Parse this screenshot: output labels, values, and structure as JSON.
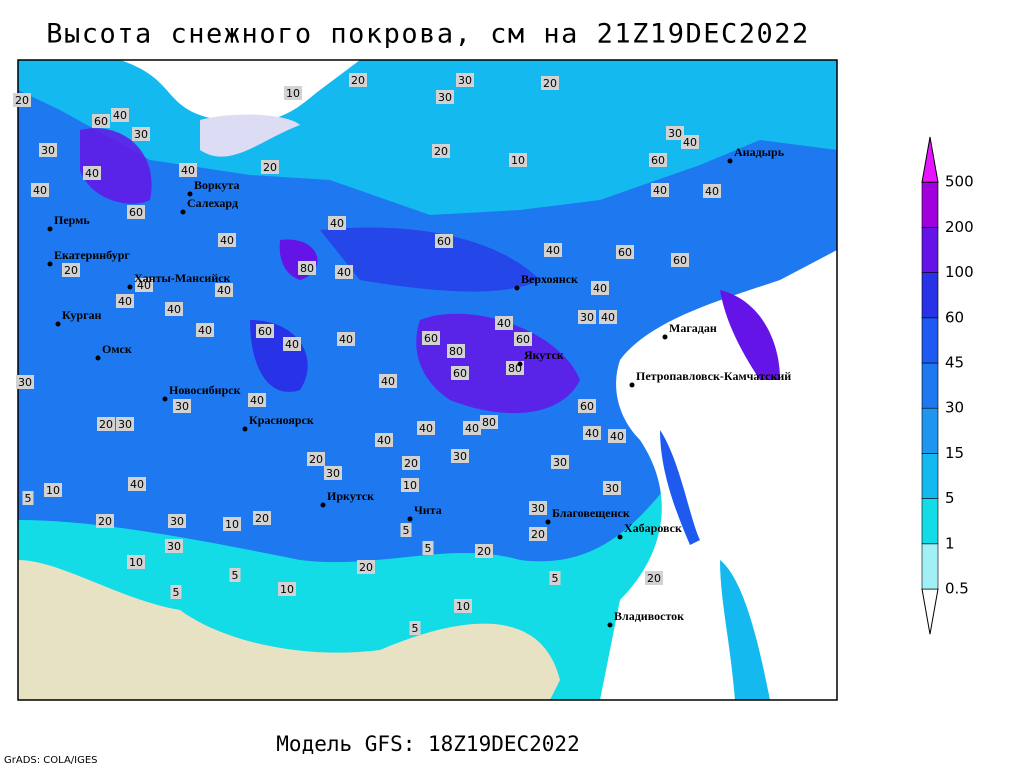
{
  "title": "Высота снежного покрова, см на 21Z19DEC2022",
  "model_label": "Модель GFS: 18Z19DEC2022",
  "credit": "GrADS: COLA/IGES",
  "cities": [
    "Анадырь",
    "Воркута",
    "Салехард",
    "Пермь",
    "Екатеринбург",
    "Ханты-Мансийск",
    "Верхоянск",
    "Курган",
    "Магадан",
    "Омск",
    "Якутск",
    "Петропавловск-Камчатский",
    "Новосибирск",
    "Красноярск",
    "Иркутск",
    "Чита",
    "Благовещенск",
    "Хабаровск",
    "Владивосток"
  ],
  "colorbar": {
    "levels": [
      0.5,
      1,
      5,
      15,
      30,
      45,
      60,
      100,
      200,
      500
    ],
    "colors": [
      "#ffffff",
      "#a0f0f5",
      "#14dce6",
      "#14b9f0",
      "#1e96f0",
      "#1e78f0",
      "#1e5af0",
      "#2832e6",
      "#6414e6",
      "#a000dc",
      "#e614ff"
    ]
  },
  "contour_labels": [
    "20",
    "30",
    "20",
    "20",
    "10",
    "30",
    "60",
    "40",
    "30",
    "30",
    "40",
    "40",
    "20",
    "20",
    "10",
    "40",
    "30",
    "60",
    "40",
    "40",
    "60",
    "40",
    "40",
    "60",
    "40",
    "60",
    "60",
    "80",
    "40",
    "40",
    "40",
    "40",
    "40",
    "40",
    "40",
    "60",
    "40",
    "40",
    "60",
    "40",
    "60",
    "80",
    "60",
    "80",
    "30",
    "40",
    "30",
    "40",
    "30",
    "40",
    "20",
    "30",
    "40",
    "40",
    "40",
    "80",
    "60",
    "40",
    "40",
    "20",
    "30",
    "20",
    "30",
    "30",
    "30",
    "40",
    "10",
    "5",
    "20",
    "30",
    "10",
    "20",
    "10",
    "30",
    "5",
    "5",
    "20",
    "10",
    "30",
    "5",
    "10",
    "20",
    "5",
    "20",
    "5",
    "10",
    "5",
    "40",
    "20",
    "20"
  ]
}
